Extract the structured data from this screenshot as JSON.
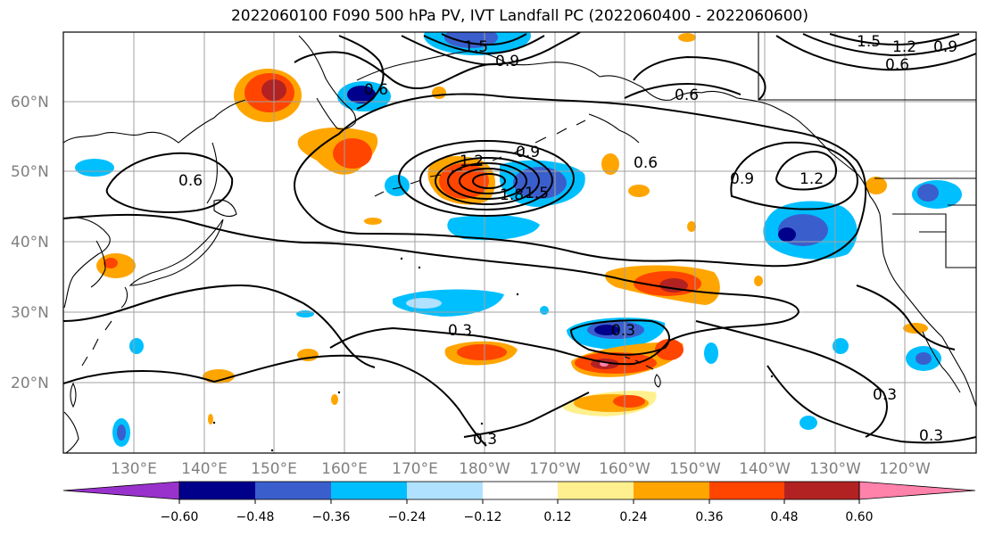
{
  "title": "2022060100 F090 500 hPa PV, IVT Landfall PC (2022060400 - 2022060600)",
  "lat_labels": [
    "60°N",
    "50°N",
    "40°N",
    "30°N",
    "20°N"
  ],
  "lon_labels": [
    "130°E",
    "140°E",
    "150°E",
    "160°E",
    "170°E",
    "180°W",
    "170°W",
    "160°W",
    "150°W",
    "140°W",
    "130°W",
    "120°W"
  ],
  "colorbar": {
    "colors": [
      "#9932cc",
      "#00008b",
      "#3a5fcd",
      "#00bfff",
      "#b0e2ff",
      "#ffffff",
      "#fff08f",
      "#ffa500",
      "#ff4500",
      "#b22222",
      "#ff82ab"
    ],
    "tick_labels": [
      "−0.60",
      "−0.48",
      "−0.36",
      "−0.24",
      "−0.12",
      "0.12",
      "0.24",
      "0.36",
      "0.48",
      "0.60"
    ]
  },
  "contour_labels": [
    {
      "text": "1.5",
      "name": "contour-label-1-5-north"
    },
    {
      "text": "0.9",
      "name": "contour-label-0-9-north"
    },
    {
      "text": "1.5",
      "name": "contour-label-1-5-ne"
    },
    {
      "text": "1.2",
      "name": "contour-label-1-2-ne"
    },
    {
      "text": "0.9",
      "name": "contour-label-0-9-ne"
    },
    {
      "text": "0.6",
      "name": "contour-label-0-6-ne"
    },
    {
      "text": "0.6",
      "name": "contour-label-0-6-kamchatka"
    },
    {
      "text": "0.6",
      "name": "contour-label-0-6-gulf"
    },
    {
      "text": "0.6",
      "name": "contour-label-0-6-japan"
    },
    {
      "text": "0.9",
      "name": "contour-label-0-9-center"
    },
    {
      "text": "0.6",
      "name": "contour-label-0-6-center"
    },
    {
      "text": "1.2",
      "name": "contour-label-1-2-center"
    },
    {
      "text": "1.8",
      "name": "contour-label-1-8-center"
    },
    {
      "text": "1.5",
      "name": "contour-label-1-5-center"
    },
    {
      "text": "0.9",
      "name": "contour-label-0-9-east"
    },
    {
      "text": "1.2",
      "name": "contour-label-1-2-east"
    },
    {
      "text": "0.3",
      "name": "contour-label-0-3-west"
    },
    {
      "text": "0.3",
      "name": "contour-label-0-3-hawaii"
    },
    {
      "text": "0.3",
      "name": "contour-label-0-3-south"
    },
    {
      "text": "0.3",
      "name": "contour-label-0-3-se"
    },
    {
      "text": "0.3",
      "name": "contour-label-0-3-far-se"
    }
  ]
}
